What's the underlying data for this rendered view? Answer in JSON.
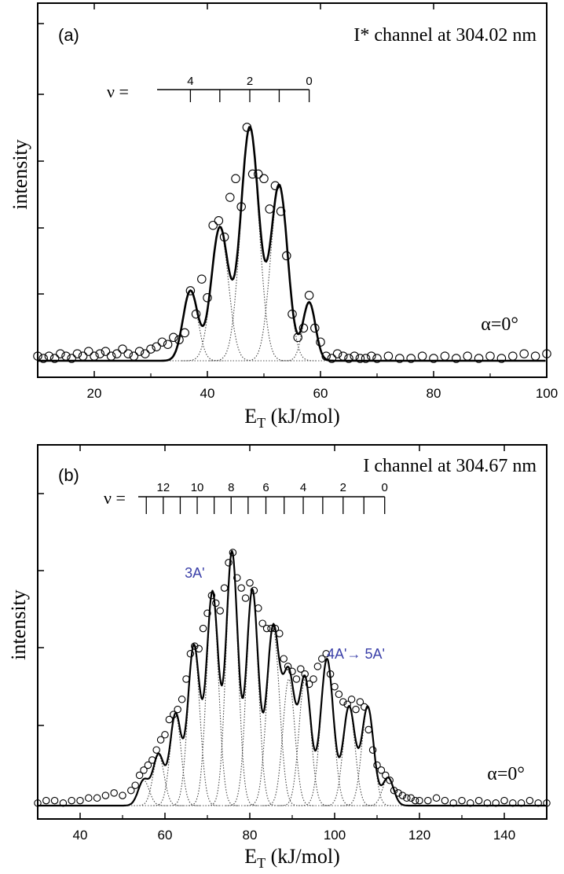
{
  "chart_data": [
    {
      "panel": "(a)",
      "type": "line",
      "title": "I* channel at 304.02 nm",
      "xlabel": "E_T (kJ/mol)",
      "ylabel": "intensity",
      "xlim": [
        10,
        100
      ],
      "ylim": [
        0,
        1.15
      ],
      "xticks": [
        20,
        40,
        60,
        80,
        100
      ],
      "grid": false,
      "annotation": "α=0°",
      "vibrational_comb": {
        "label": "ν =",
        "tick_labels": [
          {
            "v": 4,
            "x": 37.0
          },
          {
            "v": 2,
            "x": 47.5
          },
          {
            "v": 0,
            "x": 58.0
          }
        ],
        "tick_positions": [
          37.0,
          42.2,
          47.5,
          52.7,
          58.0
        ]
      },
      "components": [
        {
          "center": 37.0,
          "amp": 0.3,
          "sigma": 1.3
        },
        {
          "center": 42.2,
          "amp": 0.57,
          "sigma": 1.5
        },
        {
          "center": 47.5,
          "amp": 1.0,
          "sigma": 1.6
        },
        {
          "center": 52.7,
          "amp": 0.75,
          "sigma": 1.5
        },
        {
          "center": 58.0,
          "amp": 0.25,
          "sigma": 1.1
        }
      ],
      "observed": {
        "x": [
          10,
          11,
          12,
          13,
          14,
          15,
          16,
          17,
          18,
          19,
          20,
          21,
          22,
          23,
          24,
          25,
          26,
          27,
          28,
          29,
          30,
          31,
          32,
          33,
          34,
          35,
          36,
          37,
          38,
          39,
          40,
          41,
          42,
          43,
          44,
          45,
          46,
          47,
          48,
          49,
          50,
          51,
          52,
          53,
          54,
          55,
          56,
          57,
          58,
          59,
          60,
          61,
          62,
          63,
          64,
          65,
          66,
          67,
          68,
          69,
          70,
          72,
          74,
          76,
          78,
          80,
          82,
          84,
          86,
          88,
          90,
          92,
          94,
          96,
          98,
          100
        ],
        "y": [
          0.02,
          0.01,
          0.02,
          0.01,
          0.03,
          0.02,
          0.01,
          0.03,
          0.02,
          0.04,
          0.02,
          0.03,
          0.04,
          0.02,
          0.03,
          0.05,
          0.03,
          0.02,
          0.04,
          0.03,
          0.05,
          0.06,
          0.08,
          0.07,
          0.1,
          0.09,
          0.12,
          0.3,
          0.2,
          0.35,
          0.27,
          0.58,
          0.6,
          0.53,
          0.7,
          0.78,
          0.66,
          1.0,
          0.8,
          0.8,
          0.78,
          0.65,
          0.75,
          0.64,
          0.45,
          0.2,
          0.1,
          0.14,
          0.28,
          0.14,
          0.08,
          0.02,
          0.01,
          0.03,
          0.02,
          0.01,
          0.02,
          0.01,
          0.01,
          0.02,
          0.01,
          0.02,
          0.01,
          0.01,
          0.02,
          0.01,
          0.02,
          0.01,
          0.02,
          0.01,
          0.02,
          0.01,
          0.02,
          0.03,
          0.02,
          0.03
        ]
      }
    },
    {
      "panel": "(b)",
      "type": "line",
      "title": "I channel at 304.67 nm",
      "xlabel": "E_T (kJ/mol)",
      "ylabel": "intensity",
      "xlim": [
        30,
        150
      ],
      "ylim": [
        0,
        1.2
      ],
      "xticks": [
        40,
        60,
        80,
        100,
        120,
        140
      ],
      "grid": false,
      "annotation": "α=0°",
      "band_labels": [
        {
          "text": "3A'",
          "x": 67,
          "y": 0.9
        },
        {
          "text": "4A'→ 5A'",
          "x": 105,
          "y": 0.58
        }
      ],
      "vibrational_comb": {
        "label": "ν =",
        "tick_labels": [
          {
            "v": 12,
            "x": 59.6
          },
          {
            "v": 10,
            "x": 67.6
          },
          {
            "v": 8,
            "x": 75.6
          },
          {
            "v": 6,
            "x": 83.8
          },
          {
            "v": 4,
            "x": 92.6
          },
          {
            "v": 2,
            "x": 102.0
          },
          {
            "v": 0,
            "x": 111.8
          }
        ],
        "tick_positions": [
          55.6,
          59.6,
          63.6,
          67.6,
          71.6,
          75.6,
          79.6,
          83.8,
          88.1,
          92.6,
          97.2,
          102.0,
          106.9,
          111.8
        ]
      },
      "components": [
        {
          "center": 55.0,
          "amp": 0.1,
          "sigma": 1.3
        },
        {
          "center": 58.5,
          "amp": 0.2,
          "sigma": 1.3
        },
        {
          "center": 62.5,
          "amp": 0.36,
          "sigma": 1.3
        },
        {
          "center": 66.8,
          "amp": 0.63,
          "sigma": 1.4
        },
        {
          "center": 71.2,
          "amp": 0.84,
          "sigma": 1.4
        },
        {
          "center": 75.8,
          "amp": 1.0,
          "sigma": 1.4
        },
        {
          "center": 80.6,
          "amp": 0.85,
          "sigma": 1.4
        },
        {
          "center": 85.5,
          "amp": 0.7,
          "sigma": 1.5
        },
        {
          "center": 89.2,
          "amp": 0.5,
          "sigma": 1.4
        },
        {
          "center": 93.0,
          "amp": 0.5,
          "sigma": 1.4
        },
        {
          "center": 98.2,
          "amp": 0.58,
          "sigma": 1.5
        },
        {
          "center": 103.4,
          "amp": 0.39,
          "sigma": 1.4
        },
        {
          "center": 107.8,
          "amp": 0.39,
          "sigma": 1.4
        },
        {
          "center": 112.6,
          "amp": 0.11,
          "sigma": 1.3
        }
      ],
      "observed": {
        "x": [
          30,
          32,
          34,
          36,
          38,
          40,
          42,
          44,
          46,
          48,
          50,
          52,
          53,
          54,
          55,
          56,
          57,
          58,
          59,
          60,
          61,
          62,
          63,
          64,
          65,
          66,
          67,
          68,
          69,
          70,
          71,
          72,
          73,
          74,
          75,
          76,
          77,
          78,
          79,
          80,
          81,
          82,
          83,
          84,
          85,
          86,
          87,
          88,
          89,
          90,
          91,
          92,
          93,
          94,
          95,
          96,
          97,
          98,
          99,
          100,
          101,
          102,
          103,
          104,
          105,
          106,
          107,
          108,
          109,
          110,
          111,
          112,
          113,
          114,
          115,
          116,
          117,
          118,
          119,
          120,
          122,
          124,
          126,
          128,
          130,
          132,
          134,
          136,
          138,
          140,
          142,
          144,
          146,
          148,
          150
        ],
        "y": [
          0.01,
          0.02,
          0.02,
          0.01,
          0.02,
          0.02,
          0.03,
          0.03,
          0.04,
          0.05,
          0.04,
          0.06,
          0.08,
          0.12,
          0.14,
          0.16,
          0.18,
          0.22,
          0.26,
          0.28,
          0.34,
          0.36,
          0.38,
          0.42,
          0.5,
          0.6,
          0.63,
          0.62,
          0.7,
          0.76,
          0.83,
          0.8,
          0.77,
          0.86,
          0.96,
          1.0,
          0.9,
          0.86,
          0.82,
          0.88,
          0.85,
          0.78,
          0.72,
          0.7,
          0.7,
          0.7,
          0.68,
          0.58,
          0.55,
          0.53,
          0.5,
          0.54,
          0.52,
          0.48,
          0.5,
          0.55,
          0.58,
          0.6,
          0.52,
          0.47,
          0.44,
          0.41,
          0.4,
          0.42,
          0.38,
          0.41,
          0.39,
          0.3,
          0.22,
          0.16,
          0.14,
          0.12,
          0.1,
          0.06,
          0.05,
          0.04,
          0.03,
          0.03,
          0.02,
          0.02,
          0.02,
          0.03,
          0.02,
          0.01,
          0.02,
          0.01,
          0.02,
          0.01,
          0.01,
          0.02,
          0.01,
          0.01,
          0.02,
          0.01,
          0.01
        ]
      }
    }
  ]
}
